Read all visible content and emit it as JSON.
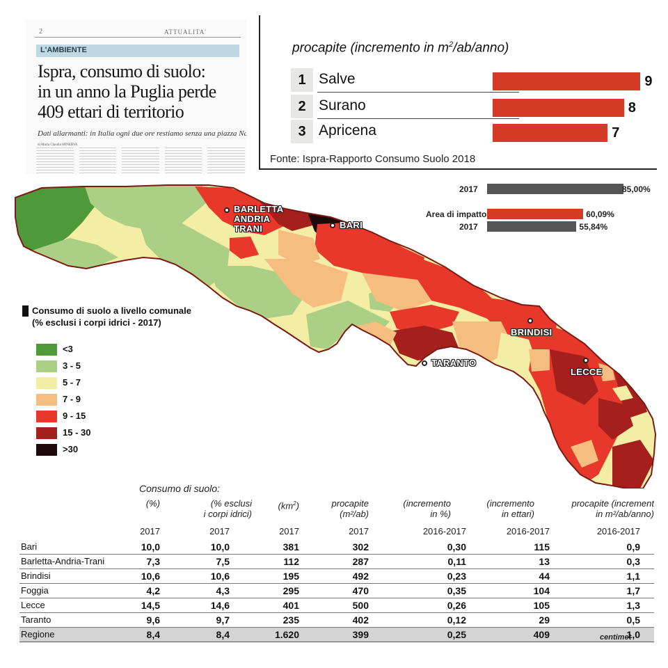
{
  "clipping": {
    "page_number": "2",
    "section": "ATTUALITA'",
    "band": "L'AMBIENTE",
    "headline_lines": [
      "Ispra, consumo di suolo:",
      "in un anno la Puglia perde",
      "409 ettari di territorio"
    ],
    "subhead": "Dati allarmanti: in Italia ogni due ore restiamo senza una piazza Navona",
    "byline": "di Maria Claudia MINERVA"
  },
  "ranking": {
    "title": "procapite (incremento in m",
    "title_sup": "2",
    "title_end": "/ab/anno)",
    "items": [
      {
        "rank": "1",
        "name": "Salve",
        "value": 9
      },
      {
        "rank": "2",
        "name": "Surano",
        "value": 8
      },
      {
        "rank": "3",
        "name": "Apricena",
        "value": 7
      }
    ],
    "source": "Fonte: Ispra-Rapporto Consumo Suolo 2018"
  },
  "comparison": {
    "rows": [
      {
        "label": "2017",
        "value": "85,00%",
        "percent": 85.0,
        "color": "#555555"
      },
      {
        "label": "Area di impatto",
        "value": "60,09%",
        "percent": 60.09,
        "color": "#d43a26"
      },
      {
        "label": "2017",
        "value": "55,84%",
        "percent": 55.84,
        "color": "#555555"
      }
    ]
  },
  "map": {
    "cities": [
      {
        "name": "BARLETTA\nANDRIA\nTRANI",
        "key": "barletta"
      },
      {
        "name": "BARI",
        "key": "bari"
      },
      {
        "name": "BRINDISI",
        "key": "brindisi"
      },
      {
        "name": "TARANTO",
        "key": "taranto"
      },
      {
        "name": "LECCE",
        "key": "lecce"
      }
    ]
  },
  "legend": {
    "title_line1": "Consumo di suolo a livello comunale",
    "title_line2": "(% esclusi i corpi idrici - 2017)",
    "items": [
      {
        "label": "<3",
        "color": "#4e9a3a"
      },
      {
        "label": "3 - 5",
        "color": "#aacf85"
      },
      {
        "label": "5 - 7",
        "color": "#f4eda6"
      },
      {
        "label": "7 - 9",
        "color": "#f5be80"
      },
      {
        "label": "9 - 15",
        "color": "#e8382b"
      },
      {
        "label": "15 - 30",
        "color": "#a51f1c"
      },
      {
        "label": ">30",
        "color": "#1e0a0a"
      }
    ]
  },
  "table": {
    "title": "Consumo di suolo:",
    "headers": [
      {
        "line1": "(%)",
        "line2": "",
        "year": "2017"
      },
      {
        "line1": "(% esclusi",
        "line2": "i corpi idrici)",
        "year": "2017"
      },
      {
        "line1": "(km",
        "sup": "2",
        "line1_end": ")",
        "line2": "",
        "year": "2017"
      },
      {
        "line1": "procapite",
        "line2": "(m²/ab)",
        "year": "2017"
      },
      {
        "line1": "(incremento",
        "line2": "in %)",
        "year": "2016-2017"
      },
      {
        "line1": "(incremento",
        "line2": "in ettari)",
        "year": "2016-2017"
      },
      {
        "line1": "procapite (increment",
        "line2": "in m²/ab/anno)",
        "year": "2016-2017"
      }
    ],
    "rows": [
      {
        "name": "Bari",
        "values": [
          "10,0",
          "10,0",
          "381",
          "302",
          "0,30",
          "115",
          "0,9"
        ]
      },
      {
        "name": "Barletta-Andria-Trani",
        "values": [
          "7,3",
          "7,5",
          "112",
          "287",
          "0,11",
          "13",
          "0,3"
        ]
      },
      {
        "name": "Brindisi",
        "values": [
          "10,6",
          "10,6",
          "195",
          "492",
          "0,23",
          "44",
          "1,1"
        ]
      },
      {
        "name": "Foggia",
        "values": [
          "4,2",
          "4,3",
          "295",
          "470",
          "0,35",
          "104",
          "1,7"
        ]
      },
      {
        "name": "Lecce",
        "values": [
          "14,5",
          "14,6",
          "401",
          "500",
          "0,26",
          "105",
          "1,3"
        ]
      },
      {
        "name": "Taranto",
        "values": [
          "9,6",
          "9,7",
          "235",
          "402",
          "0,12",
          "29",
          "0,5"
        ]
      },
      {
        "name": "Regione",
        "values": [
          "8,4",
          "8,4",
          "1.620",
          "399",
          "0,25",
          "409",
          "1,0"
        ]
      }
    ],
    "brand": "centimet"
  }
}
